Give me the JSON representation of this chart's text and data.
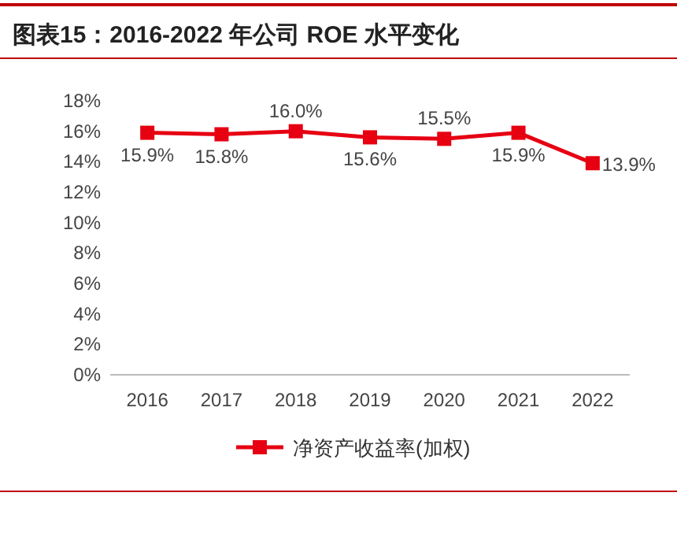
{
  "chart_data": {
    "type": "line",
    "title": "图表15：2016-2022 年公司 ROE 水平变化",
    "categories": [
      "2016",
      "2017",
      "2018",
      "2019",
      "2020",
      "2021",
      "2022"
    ],
    "series": [
      {
        "name": "净资产收益率(加权)",
        "color": "#e60012",
        "values": [
          15.9,
          15.8,
          16.0,
          15.6,
          15.5,
          15.9,
          13.9
        ],
        "value_labels": [
          "15.9%",
          "15.8%",
          "16.0%",
          "15.6%",
          "15.5%",
          "15.9%",
          "13.9%"
        ]
      }
    ],
    "ylim": [
      0,
      18
    ],
    "yticks": [
      {
        "value": 0,
        "label": "0%"
      },
      {
        "value": 2,
        "label": "2%"
      },
      {
        "value": 4,
        "label": "4%"
      },
      {
        "value": 6,
        "label": "6%"
      },
      {
        "value": 8,
        "label": "8%"
      },
      {
        "value": 10,
        "label": "10%"
      },
      {
        "value": 12,
        "label": "12%"
      },
      {
        "value": 14,
        "label": "14%"
      },
      {
        "value": 16,
        "label": "16%"
      },
      {
        "value": 18,
        "label": "18%"
      }
    ],
    "marker": "square",
    "line_style": "solid",
    "legend": "bottom",
    "grid": false
  }
}
